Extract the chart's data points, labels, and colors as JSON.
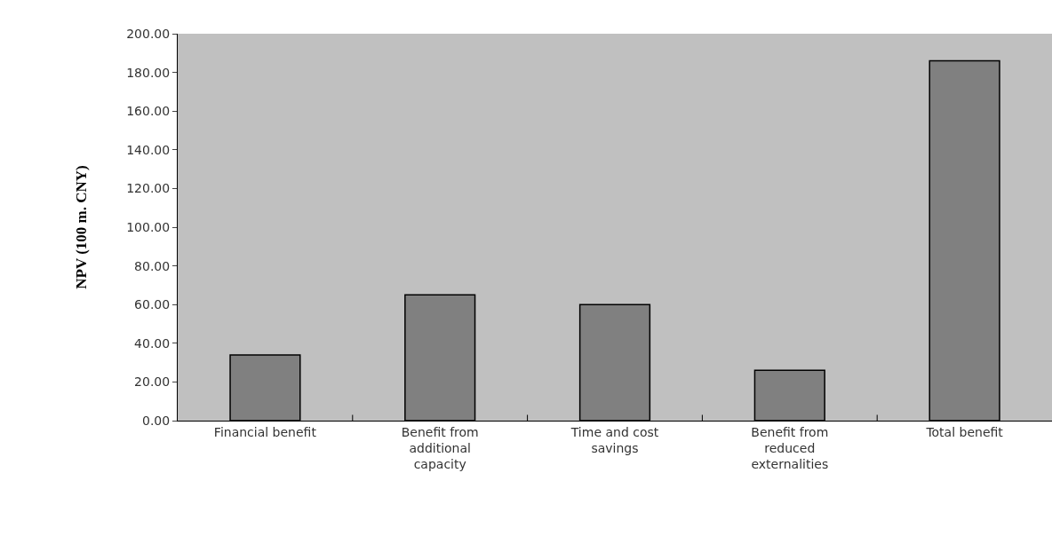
{
  "chart_data": {
    "type": "bar",
    "ylabel": "NPV (100 m. CNY)",
    "categories": [
      "Financial benefit",
      "Benefit from additional capacity",
      "Time and cost savings",
      "Benefit from reduced externalities",
      "Total benefit"
    ],
    "values": [
      34,
      65,
      60,
      26,
      186
    ],
    "color": "#808080",
    "ylim": [
      0,
      200
    ],
    "yticks": [
      {
        "value": 0,
        "label": "0.00"
      },
      {
        "value": 20,
        "label": "20.00"
      },
      {
        "value": 40,
        "label": "40.00"
      },
      {
        "value": 60,
        "label": "60.00"
      },
      {
        "value": 80,
        "label": "80.00"
      },
      {
        "value": 100,
        "label": "100.00"
      },
      {
        "value": 120,
        "label": "120.00"
      },
      {
        "value": 140,
        "label": "140.00"
      },
      {
        "value": 160,
        "label": "160.00"
      },
      {
        "value": 180,
        "label": "180.00"
      },
      {
        "value": 200,
        "label": "200.00"
      }
    ],
    "grid": false,
    "legend": false
  }
}
